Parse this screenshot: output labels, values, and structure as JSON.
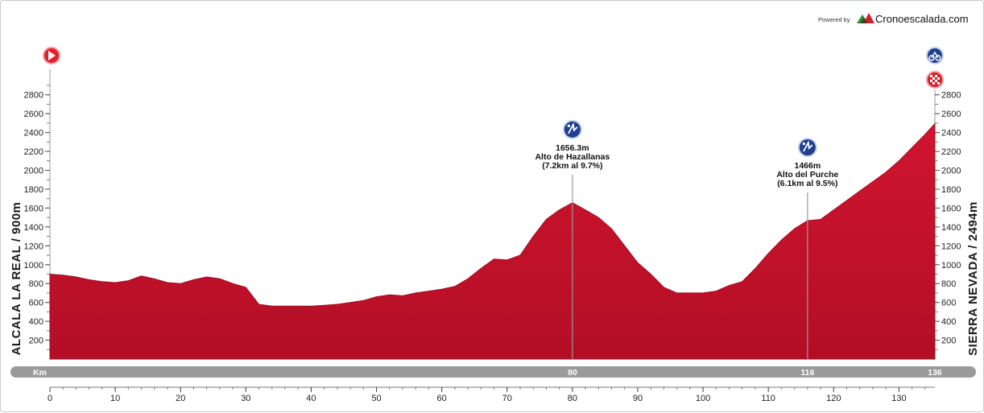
{
  "credit": {
    "powered_by": "Powered by",
    "brand": "Cronoescalada.com"
  },
  "start_label": "ALCALA LA REAL / 900m",
  "finish_label": "SIERRA NEVADA / 2494m",
  "colors": {
    "profile": "#c8102e",
    "profile_dark": "#a10c23",
    "bar": "#9a9a9a",
    "icon_blue": "#1f3f8f",
    "start_red": "#e2202b"
  },
  "icons": {
    "start": "start-flag-icon",
    "finish": "checkered-finish-icon",
    "summit_finish": "cycling-summit-icon",
    "climb": "climb-category-icon"
  },
  "chart_data": {
    "type": "area",
    "x": [
      0,
      2,
      4,
      6,
      8,
      10,
      12,
      14,
      16,
      18,
      20,
      22,
      24,
      26,
      28,
      30,
      32,
      34,
      36,
      38,
      40,
      42,
      44,
      46,
      48,
      50,
      52,
      54,
      56,
      58,
      60,
      62,
      64,
      66,
      68,
      70,
      72,
      74,
      76,
      78,
      80,
      82,
      84,
      86,
      88,
      90,
      92,
      94,
      96,
      98,
      100,
      102,
      104,
      106,
      108,
      110,
      112,
      114,
      116,
      118,
      120,
      122,
      124,
      126,
      128,
      130,
      132,
      134,
      135.5
    ],
    "y": [
      900,
      890,
      870,
      840,
      820,
      810,
      830,
      880,
      850,
      810,
      800,
      840,
      870,
      850,
      800,
      760,
      580,
      560,
      560,
      560,
      560,
      570,
      580,
      600,
      620,
      660,
      680,
      670,
      700,
      720,
      740,
      770,
      850,
      960,
      1060,
      1050,
      1100,
      1300,
      1480,
      1580,
      1656,
      1580,
      1500,
      1380,
      1200,
      1020,
      900,
      760,
      700,
      700,
      700,
      720,
      780,
      820,
      960,
      1120,
      1260,
      1380,
      1466,
      1480,
      1580,
      1680,
      1780,
      1880,
      1980,
      2100,
      2240,
      2380,
      2494
    ],
    "xlabel": "Km",
    "ylim": [
      0,
      2900
    ],
    "xlim": [
      0,
      135.5
    ],
    "y_ticks": [
      200,
      400,
      600,
      800,
      1000,
      1200,
      1400,
      1600,
      1800,
      2000,
      2200,
      2400,
      2600,
      2800
    ],
    "x_ticks": [
      0,
      10,
      20,
      30,
      40,
      50,
      60,
      70,
      80,
      90,
      100,
      110,
      120,
      130
    ],
    "bar_marks": [
      {
        "km": 80,
        "label": "80"
      },
      {
        "km": 116,
        "label": "116"
      },
      {
        "km": 135.5,
        "label": "136"
      }
    ],
    "climbs": [
      {
        "km": 80,
        "elevation": 1656.3,
        "height_label": "1656.3m",
        "name": "Alto de Hazallanas",
        "detail": "(7.2km al 9.7%)"
      },
      {
        "km": 116,
        "elevation": 1466,
        "height_label": "1466m",
        "name": "Alto del Purche",
        "detail": "(6.1km al 9.5%)"
      }
    ],
    "grid": false
  }
}
